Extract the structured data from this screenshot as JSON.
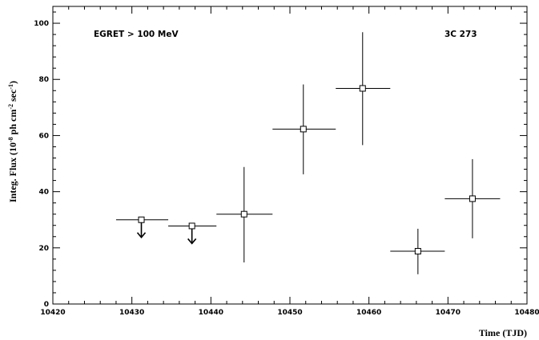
{
  "chart_data": {
    "type": "scatter",
    "xlabel": "Time (TJD)",
    "ylabel_main": "Integ. Flux (10",
    "ylabel_exp1": "-8",
    "ylabel_mid": " ph cm",
    "ylabel_exp2": "-2",
    "ylabel_mid2": " sec",
    "ylabel_exp3": "-1",
    "ylabel_end": ")",
    "annotation_left": "EGRET > 100 MeV",
    "annotation_right": "3C 273",
    "xlim": [
      10420,
      10480
    ],
    "ylim": [
      0,
      106
    ],
    "x_ticks": [
      10420,
      10430,
      10440,
      10450,
      10460,
      10470,
      10480
    ],
    "x_tick_labels": [
      "10420",
      "10430",
      "10440",
      "10450",
      "10460",
      "10470",
      "10480"
    ],
    "y_ticks": [
      0,
      20,
      40,
      60,
      80,
      100
    ],
    "y_tick_labels": [
      "0",
      "20",
      "40",
      "60",
      "80",
      "100"
    ],
    "grid": false,
    "points": [
      {
        "x": 10431.2,
        "x_lo": 10428.0,
        "x_hi": 10434.6,
        "y": 30.0,
        "upper_limit": true
      },
      {
        "x": 10437.6,
        "x_lo": 10434.6,
        "x_hi": 10440.7,
        "y": 27.8,
        "upper_limit": true
      },
      {
        "x": 10444.2,
        "x_lo": 10440.7,
        "x_hi": 10447.8,
        "y": 32.0,
        "y_lo": 14.8,
        "y_hi": 48.8,
        "upper_limit": false
      },
      {
        "x": 10451.7,
        "x_lo": 10447.8,
        "x_hi": 10455.8,
        "y": 62.3,
        "y_lo": 46.2,
        "y_hi": 78.2,
        "upper_limit": false
      },
      {
        "x": 10459.2,
        "x_lo": 10455.8,
        "x_hi": 10462.7,
        "y": 76.8,
        "y_lo": 56.6,
        "y_hi": 96.8,
        "upper_limit": false
      },
      {
        "x": 10466.2,
        "x_lo": 10462.7,
        "x_hi": 10469.6,
        "y": 18.8,
        "y_lo": 10.6,
        "y_hi": 26.8,
        "upper_limit": false
      },
      {
        "x": 10473.1,
        "x_lo": 10469.6,
        "x_hi": 10476.6,
        "y": 37.5,
        "y_lo": 23.4,
        "y_hi": 51.6,
        "upper_limit": false
      }
    ]
  }
}
